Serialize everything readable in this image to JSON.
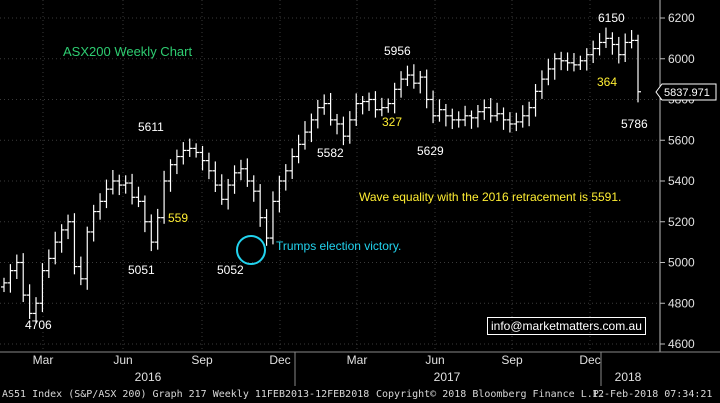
{
  "chart_data": {
    "type": "ohlc",
    "title": "ASX200 Weekly Chart",
    "ylim": [
      4600,
      6300
    ],
    "y_ticks": [
      4600,
      4800,
      5000,
      5200,
      5400,
      5600,
      5800,
      6000,
      6200
    ],
    "x_tick_labels": [
      "Mar",
      "Jun",
      "Sep",
      "Dec",
      "Mar",
      "Jun",
      "Sep",
      "Dec"
    ],
    "year_labels": [
      "2016",
      "2017",
      "2018"
    ],
    "last_price": "5837.971",
    "price_labels": [
      "4706",
      "5611",
      "5051",
      "5052",
      "5582",
      "5956",
      "5629",
      "6150",
      "5786"
    ],
    "annotations": {
      "wave_559": "559",
      "wave_327": "327",
      "wave_364": "364",
      "wave_equality": "Wave equality with the 2016 retracement is 5591.",
      "election": "Trumps election victory."
    },
    "weekly_close": [
      4900,
      4960,
      5000,
      4840,
      4750,
      4800,
      4960,
      5020,
      5100,
      5160,
      5200,
      4980,
      4920,
      5150,
      5250,
      5300,
      5360,
      5400,
      5380,
      5390,
      5320,
      5300,
      5200,
      5100,
      5220,
      5400,
      5480,
      5520,
      5550,
      5560,
      5540,
      5500,
      5450,
      5380,
      5310,
      5380,
      5440,
      5460,
      5400,
      5350,
      5220,
      5120,
      5300,
      5400,
      5450,
      5520,
      5580,
      5640,
      5700,
      5760,
      5780,
      5700,
      5680,
      5620,
      5700,
      5780,
      5790,
      5800,
      5750,
      5760,
      5780,
      5850,
      5900,
      5920,
      5880,
      5910,
      5800,
      5720,
      5750,
      5720,
      5700,
      5700,
      5720,
      5710,
      5740,
      5760,
      5720,
      5730,
      5700,
      5680,
      5690,
      5720,
      5760,
      5840,
      5900,
      5950,
      6000,
      5990,
      5980,
      5970,
      5990,
      6020,
      6050,
      6080,
      6100,
      6070,
      6020,
      6080,
      6090,
      5838
    ]
  },
  "labels": {
    "chart_title": "ASX200 Weekly Chart",
    "election": "Trumps election victory.",
    "wave_equality": "Wave equality with the 2016 retracement is 5591.",
    "email": "info@marketmatters.com.au",
    "last_price": "5837.971"
  },
  "footer": {
    "left": "AS51 Index (S&P/ASX 200) Graph 217  Weekly 11FEB2013-12FEB2018",
    "copyright": "Copyright© 2018 Bloomberg Finance L.P.",
    "timestamp": "12-Feb-2018 07:34:21"
  },
  "colors": {
    "background": "#000000",
    "grid": "#3a3a3a",
    "bars": "#ffffff",
    "title": "#2ecc71",
    "yellow_text": "#ffee33",
    "cyan": "#22d3ee",
    "price_label": "#ffffff"
  }
}
